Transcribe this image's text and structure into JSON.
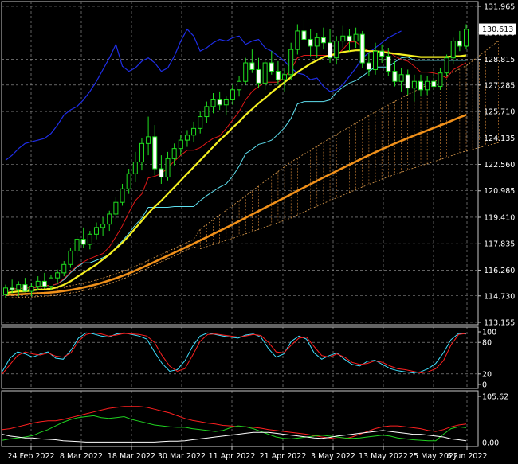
{
  "chart_data": [
    {
      "panel": "main",
      "type": "candlestick",
      "ylim": [
        113.155,
        131.965
      ],
      "y_ticks": [
        "131.965",
        "130.390",
        "128.815",
        "127.285",
        "125.710",
        "124.135",
        "122.560",
        "120.985",
        "119.410",
        "117.835",
        "116.260",
        "114.730",
        "113.155"
      ],
      "current_price": "130.613",
      "x_tick_labels": [
        "24 Feb 2022",
        "8 Mar 2022",
        "18 Mar 2022",
        "30 Mar 2022",
        "11 Apr 2022",
        "21 Apr 2022",
        "3 May 2022",
        "13 May 2022",
        "25 May 2022",
        "6 Jun 2022"
      ],
      "grid": true,
      "candles": [
        [
          114.8,
          115.4,
          114.6,
          115.2
        ],
        [
          115.2,
          115.7,
          114.9,
          115.1
        ],
        [
          115.1,
          115.6,
          114.7,
          115.4
        ],
        [
          115.4,
          115.8,
          115.0,
          115.0
        ],
        [
          115.0,
          115.5,
          114.7,
          115.3
        ],
        [
          115.3,
          115.9,
          115.1,
          115.6
        ],
        [
          115.6,
          116.1,
          115.2,
          115.3
        ],
        [
          115.3,
          116.0,
          115.1,
          115.8
        ],
        [
          115.8,
          116.3,
          115.5,
          116.1
        ],
        [
          116.1,
          116.8,
          115.9,
          116.6
        ],
        [
          116.6,
          117.6,
          116.4,
          117.4
        ],
        [
          117.4,
          118.3,
          117.1,
          118.1
        ],
        [
          118.1,
          118.8,
          117.6,
          117.8
        ],
        [
          117.8,
          118.6,
          117.5,
          118.4
        ],
        [
          118.4,
          119.1,
          118.1,
          118.8
        ],
        [
          118.8,
          119.4,
          118.3,
          119.0
        ],
        [
          119.0,
          119.8,
          118.6,
          119.6
        ],
        [
          119.6,
          120.6,
          119.3,
          120.3
        ],
        [
          120.3,
          121.4,
          120.1,
          121.1
        ],
        [
          121.1,
          122.3,
          120.8,
          122.0
        ],
        [
          122.0,
          123.3,
          121.5,
          122.7
        ],
        [
          122.7,
          124.1,
          122.2,
          123.8
        ],
        [
          123.8,
          125.4,
          123.1,
          124.2
        ],
        [
          124.2,
          124.9,
          121.9,
          122.3
        ],
        [
          122.3,
          123.1,
          121.4,
          121.8
        ],
        [
          121.8,
          123.3,
          121.6,
          122.9
        ],
        [
          122.9,
          123.8,
          122.5,
          123.5
        ],
        [
          123.5,
          124.3,
          123.1,
          124.0
        ],
        [
          124.0,
          124.6,
          123.6,
          124.3
        ],
        [
          124.3,
          125.1,
          123.9,
          124.7
        ],
        [
          124.7,
          125.7,
          124.4,
          125.4
        ],
        [
          125.4,
          126.3,
          125.0,
          126.0
        ],
        [
          126.0,
          126.8,
          125.6,
          126.4
        ],
        [
          126.4,
          126.9,
          125.8,
          126.1
        ],
        [
          126.1,
          126.6,
          125.5,
          126.4
        ],
        [
          126.4,
          127.3,
          126.1,
          127.0
        ],
        [
          127.0,
          127.8,
          126.6,
          127.5
        ],
        [
          127.5,
          128.9,
          127.3,
          128.6
        ],
        [
          128.6,
          129.4,
          128.0,
          128.2
        ],
        [
          128.2,
          128.9,
          127.1,
          127.4
        ],
        [
          127.4,
          128.8,
          127.0,
          128.6
        ],
        [
          128.6,
          129.3,
          127.9,
          128.1
        ],
        [
          128.1,
          128.7,
          127.3,
          127.6
        ],
        [
          127.6,
          128.3,
          126.9,
          127.9
        ],
        [
          127.9,
          129.8,
          127.6,
          129.4
        ],
        [
          129.4,
          130.9,
          129.1,
          130.5
        ],
        [
          130.5,
          131.2,
          129.9,
          130.0
        ],
        [
          130.0,
          130.6,
          129.0,
          129.6
        ],
        [
          129.6,
          130.4,
          128.9,
          130.1
        ],
        [
          130.1,
          130.7,
          129.4,
          129.8
        ],
        [
          129.8,
          130.6,
          128.6,
          128.9
        ],
        [
          128.9,
          130.2,
          128.5,
          129.9
        ],
        [
          129.9,
          130.8,
          129.5,
          130.2
        ],
        [
          130.2,
          130.6,
          129.3,
          129.9
        ],
        [
          129.9,
          130.7,
          129.5,
          130.3
        ],
        [
          130.3,
          130.5,
          128.3,
          128.6
        ],
        [
          128.6,
          129.2,
          127.8,
          128.2
        ],
        [
          128.2,
          129.8,
          127.9,
          129.3
        ],
        [
          129.3,
          129.7,
          128.6,
          129.0
        ],
        [
          129.0,
          129.5,
          127.8,
          128.1
        ],
        [
          128.1,
          128.7,
          127.2,
          127.5
        ],
        [
          127.5,
          128.3,
          126.9,
          127.9
        ],
        [
          127.9,
          128.2,
          126.7,
          127.1
        ],
        [
          127.1,
          127.9,
          126.3,
          127.5
        ],
        [
          127.5,
          127.9,
          126.6,
          127.0
        ],
        [
          127.0,
          127.8,
          126.7,
          127.5
        ],
        [
          127.5,
          128.1,
          127.0,
          127.2
        ],
        [
          127.2,
          128.3,
          127.0,
          128.0
        ],
        [
          128.0,
          129.1,
          127.8,
          128.9
        ],
        [
          128.9,
          130.1,
          128.5,
          129.9
        ],
        [
          129.9,
          130.5,
          129.3,
          129.6
        ],
        [
          129.6,
          130.9,
          129.4,
          130.6
        ]
      ],
      "ma_fast": [
        114.9,
        114.95,
        115.0,
        115.0,
        115.05,
        115.1,
        115.1,
        115.15,
        115.25,
        115.4,
        115.6,
        115.85,
        116.1,
        116.35,
        116.6,
        116.9,
        117.2,
        117.55,
        117.9,
        118.3,
        118.75,
        119.2,
        119.65,
        120.05,
        120.4,
        120.8,
        121.2,
        121.6,
        122.0,
        122.4,
        122.8,
        123.2,
        123.6,
        124.0,
        124.35,
        124.75,
        125.1,
        125.5,
        125.85,
        126.2,
        126.5,
        126.85,
        127.15,
        127.45,
        127.75,
        128.05,
        128.3,
        128.55,
        128.75,
        128.95,
        129.05,
        129.15,
        129.25,
        129.3,
        129.35,
        129.35,
        129.3,
        129.3,
        129.25,
        129.2,
        129.15,
        129.1,
        129.05,
        129.0,
        128.95,
        128.95,
        128.95,
        128.95,
        128.95,
        129.0,
        129.0,
        129.05
      ],
      "ma_slow": [
        114.8,
        114.8,
        114.82,
        114.84,
        114.86,
        114.88,
        114.9,
        114.93,
        114.97,
        115.02,
        115.08,
        115.15,
        115.23,
        115.32,
        115.42,
        115.53,
        115.65,
        115.78,
        115.92,
        116.07,
        116.23,
        116.4,
        116.58,
        116.76,
        116.94,
        117.12,
        117.3,
        117.48,
        117.66,
        117.84,
        118.03,
        118.22,
        118.41,
        118.6,
        118.79,
        118.98,
        119.18,
        119.38,
        119.58,
        119.78,
        119.98,
        120.18,
        120.38,
        120.58,
        120.78,
        120.98,
        121.18,
        121.38,
        121.58,
        121.78,
        121.97,
        122.16,
        122.35,
        122.54,
        122.73,
        122.92,
        123.1,
        123.28,
        123.46,
        123.63,
        123.8,
        123.96,
        124.12,
        124.28,
        124.43,
        124.58,
        124.73,
        124.88,
        125.03,
        125.2,
        125.36,
        125.5
      ],
      "blue_line": [
        122.8,
        123.1,
        123.5,
        123.8,
        123.9,
        124.0,
        124.1,
        124.4,
        124.9,
        125.5,
        125.8,
        126.0,
        126.4,
        126.9,
        127.5,
        128.2,
        128.9,
        129.7,
        128.4,
        128.1,
        128.3,
        128.7,
        128.9,
        128.6,
        128.1,
        128.3,
        129.0,
        129.9,
        130.6,
        130.2,
        129.3,
        129.5,
        129.8,
        130.0,
        129.9,
        130.1,
        130.2,
        129.7,
        129.9,
        130.0,
        129.5,
        129.3,
        129.0,
        128.7,
        128.3,
        128.0,
        127.9,
        127.6,
        127.7,
        127.2,
        126.9,
        127.0,
        127.3,
        127.8,
        128.3,
        128.9,
        129.2,
        129.5,
        129.8,
        130.1,
        130.3,
        130.5
      ]
    },
    {
      "panel": "stochastic",
      "type": "line",
      "ylim": [
        0,
        100
      ],
      "y_ticks": [
        "100",
        "80",
        "20",
        "0"
      ],
      "series": [
        {
          "color": "#ff2020",
          "values": [
            20,
            38,
            55,
            62,
            58,
            56,
            60,
            54,
            52,
            60,
            82,
            95,
            98,
            96,
            92,
            94,
            97,
            96,
            95,
            92,
            80,
            55,
            35,
            25,
            30,
            55,
            82,
            95,
            96,
            94,
            92,
            90,
            92,
            95,
            93,
            80,
            62,
            60,
            75,
            88,
            90,
            72,
            55,
            52,
            58,
            52,
            42,
            38,
            40,
            45,
            42,
            35,
            30,
            28,
            25,
            22,
            24,
            30,
            45,
            75,
            95,
            97
          ]
        },
        {
          "color": "#40e0ff",
          "values": [
            25,
            50,
            62,
            58,
            52,
            58,
            62,
            50,
            48,
            65,
            88,
            98,
            96,
            92,
            90,
            96,
            98,
            95,
            92,
            86,
            62,
            40,
            25,
            28,
            45,
            72,
            92,
            98,
            95,
            92,
            90,
            88,
            94,
            96,
            90,
            68,
            52,
            58,
            82,
            92,
            86,
            60,
            48,
            55,
            60,
            48,
            38,
            35,
            44,
            46,
            38,
            30,
            26,
            24,
            22,
            24,
            30,
            40,
            60,
            85,
            97,
            96
          ]
        }
      ]
    },
    {
      "panel": "adx",
      "type": "line",
      "y_ticks": [
        "105.62",
        "0.00"
      ],
      "series": [
        {
          "color": "#ff2020",
          "values": [
            28,
            30,
            34,
            38,
            42,
            45,
            47,
            47,
            50,
            54,
            58,
            62,
            66,
            70,
            74,
            76,
            78,
            78,
            78,
            76,
            72,
            68,
            64,
            58,
            52,
            48,
            45,
            42,
            40,
            37,
            36,
            34,
            34,
            33,
            31,
            28,
            26,
            24,
            22,
            20,
            18,
            15,
            12,
            10,
            8,
            8,
            12,
            18,
            24,
            30,
            34,
            36,
            36,
            34,
            32,
            30,
            26,
            24,
            28,
            34,
            38,
            40
          ]
        },
        {
          "color": "#20d020",
          "values": [
            5,
            8,
            10,
            12,
            15,
            22,
            28,
            36,
            44,
            50,
            54,
            56,
            58,
            54,
            52,
            54,
            56,
            50,
            46,
            42,
            38,
            36,
            34,
            33,
            33,
            30,
            28,
            26,
            24,
            26,
            32,
            36,
            34,
            30,
            24,
            18,
            12,
            9,
            8,
            10,
            12,
            14,
            16,
            14,
            12,
            10,
            9,
            10,
            12,
            14,
            16,
            14,
            10,
            8,
            6,
            5,
            4,
            4,
            18,
            30,
            34,
            32
          ]
        },
        {
          "color": "#ffffff",
          "values": [
            18,
            14,
            12,
            10,
            10,
            8,
            7,
            6,
            4,
            3,
            2,
            1,
            1,
            1,
            1,
            1,
            1,
            1,
            1,
            1,
            1,
            2,
            3,
            3,
            4,
            6,
            8,
            10,
            12,
            14,
            16,
            18,
            20,
            22,
            22,
            22,
            20,
            18,
            16,
            14,
            12,
            10,
            9,
            11,
            14,
            16,
            18,
            20,
            22,
            24,
            26,
            24,
            22,
            20,
            18,
            18,
            16,
            14,
            12,
            8,
            6,
            4
          ]
        }
      ]
    }
  ]
}
